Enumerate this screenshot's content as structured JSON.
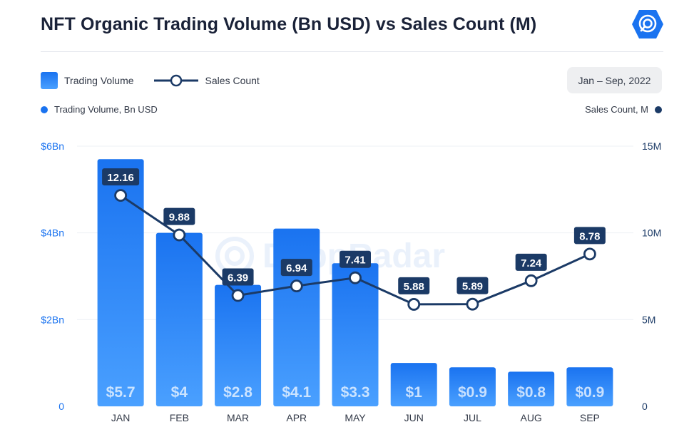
{
  "header": {
    "title": "NFT Organic Trading Volume (Bn USD) vs Sales Count (M)",
    "logo_icon": "dappradar-logo-icon"
  },
  "legend": {
    "bar_label": "Trading Volume",
    "line_label": "Sales Count"
  },
  "date_range": "Jan – Sep, 2022",
  "axis_keys": {
    "left": "Trading Volume, Bn USD",
    "right": "Sales Count, M"
  },
  "watermark": "DappRadar",
  "colors": {
    "bar_top": "#1a73f0",
    "bar_bottom": "#4aa0ff",
    "line": "#1b3a66",
    "label_bg": "#1b3a66",
    "left_axis_text": "#1a73f0",
    "right_axis_text": "#1b3a66"
  },
  "chart_data": {
    "type": "bar",
    "title": "NFT Organic Trading Volume (Bn USD) vs Sales Count (M)",
    "categories": [
      "JAN",
      "FEB",
      "MAR",
      "APR",
      "MAY",
      "JUN",
      "JUL",
      "AUG",
      "SEP"
    ],
    "series": [
      {
        "name": "Trading Volume",
        "type": "bar",
        "axis": "left",
        "values": [
          5.7,
          4,
          2.8,
          4.1,
          3.3,
          1,
          0.9,
          0.8,
          0.9
        ],
        "labels": [
          "$5.7",
          "$4",
          "$2.8",
          "$4.1",
          "$3.3",
          "$1",
          "$0.9",
          "$0.8",
          "$0.9"
        ]
      },
      {
        "name": "Sales Count",
        "type": "line",
        "axis": "right",
        "values": [
          12.16,
          9.88,
          6.39,
          6.94,
          7.41,
          5.88,
          5.89,
          7.24,
          8.78
        ],
        "labels": [
          "12.16",
          "9.88",
          "6.39",
          "6.94",
          "7.41",
          "5.88",
          "5.89",
          "7.24",
          "8.78"
        ]
      }
    ],
    "y_left": {
      "ylim": [
        0,
        6
      ],
      "ticks": [
        0,
        2,
        4,
        6
      ],
      "tick_labels": [
        "0",
        "$2Bn",
        "$4Bn",
        "$6Bn"
      ]
    },
    "y_right": {
      "ylim": [
        0,
        15
      ],
      "ticks": [
        0,
        5,
        10,
        15
      ],
      "tick_labels": [
        "0",
        "5M",
        "10M",
        "15M"
      ]
    },
    "grid": true,
    "legend_position": "top-left"
  }
}
